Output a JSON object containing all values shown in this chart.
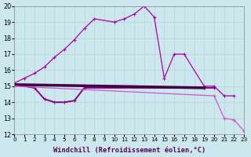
{
  "title": "",
  "xlabel": "Windchill (Refroidissement éolien,°C)",
  "background_color": "#cce8ee",
  "grid_color": "#b0d8cc",
  "xmin": 0,
  "xmax": 23,
  "ymin": 12,
  "ymax": 20,
  "series1": {
    "x": [
      0,
      1,
      2,
      3,
      4,
      5,
      6,
      7,
      8,
      10,
      11,
      12,
      13,
      14,
      15,
      16,
      17,
      19,
      20,
      21,
      22
    ],
    "y": [
      15.2,
      15.5,
      15.8,
      16.2,
      16.8,
      17.3,
      17.9,
      18.6,
      19.2,
      19.0,
      19.2,
      19.5,
      20.0,
      19.3,
      15.5,
      17.0,
      17.0,
      15.0,
      15.0,
      14.4,
      14.4
    ],
    "color": "#aa00aa",
    "linewidth": 0.9,
    "markersize": 3.0
  },
  "series2": {
    "x": [
      0,
      2,
      3,
      4,
      5,
      6,
      7,
      19,
      20
    ],
    "y": [
      15.1,
      14.9,
      14.2,
      14.0,
      14.0,
      14.1,
      14.9,
      14.9,
      14.9
    ],
    "color": "#880088",
    "linewidth": 1.4,
    "markersize": 2.5
  },
  "series3": {
    "x": [
      0,
      19
    ],
    "y": [
      15.1,
      14.9
    ],
    "color": "#440044",
    "linewidth": 2.5
  },
  "series4": {
    "x": [
      0,
      20,
      21,
      22,
      23
    ],
    "y": [
      15.0,
      14.4,
      13.0,
      12.9,
      12.2
    ],
    "color": "#cc55cc",
    "linewidth": 0.9,
    "markersize": 3.0
  },
  "xtick_fontsize": 5.2,
  "ytick_fontsize": 5.8,
  "xlabel_fontsize": 6.2
}
